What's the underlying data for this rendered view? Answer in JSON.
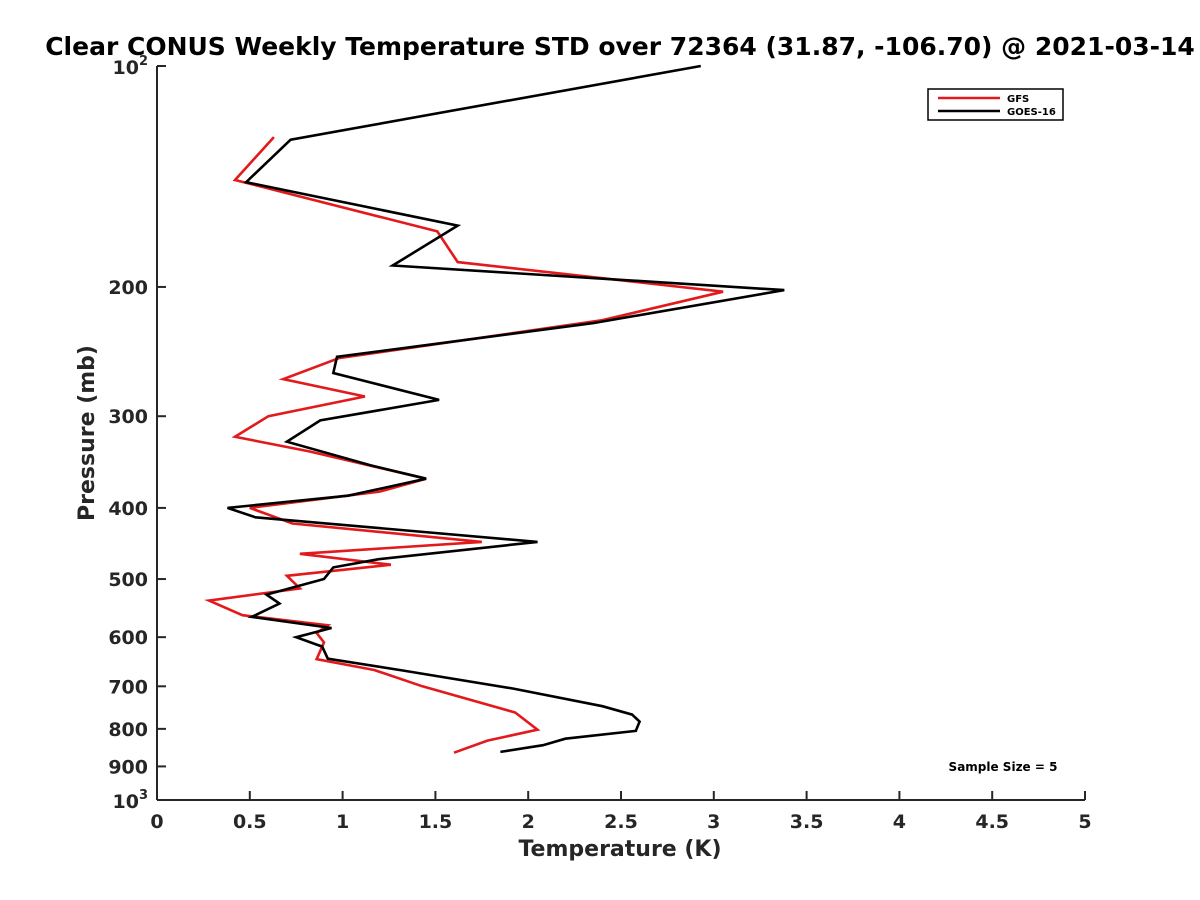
{
  "chart_data": {
    "type": "line",
    "title": "Clear CONUS Weekly Temperature STD over 72364 (31.87, -106.70) @ 2021-03-14",
    "xlabel": "Temperature (K)",
    "ylabel": "Pressure (mb)",
    "xlim": [
      0,
      5
    ],
    "ylim": [
      100,
      1000
    ],
    "yscale": "log",
    "y_reversed": true,
    "grid": false,
    "legend_position": "top-right",
    "x_ticks": [
      "0",
      "0.5",
      "1",
      "1.5",
      "2",
      "2.5",
      "3",
      "3.5",
      "4",
      "4.5",
      "5"
    ],
    "y_ticks": [
      {
        "value": 100,
        "base": "10",
        "exp": "2"
      },
      {
        "value": 200,
        "label": "200"
      },
      {
        "value": 300,
        "label": "300"
      },
      {
        "value": 400,
        "label": "400"
      },
      {
        "value": 500,
        "label": "500"
      },
      {
        "value": 600,
        "label": "600"
      },
      {
        "value": 700,
        "label": "700"
      },
      {
        "value": 800,
        "label": "800"
      },
      {
        "value": 900,
        "label": "900"
      },
      {
        "value": 1000,
        "base": "10",
        "exp": "3"
      }
    ],
    "annotation": "Sample Size = 5",
    "series": [
      {
        "name": "GFS",
        "color": "#e31a1c",
        "points": [
          [
            0.63,
            125
          ],
          [
            0.42,
            143
          ],
          [
            1.51,
            168
          ],
          [
            1.62,
            185
          ],
          [
            3.05,
            203
          ],
          [
            2.4,
            222
          ],
          [
            0.98,
            250
          ],
          [
            0.68,
            267
          ],
          [
            1.12,
            282
          ],
          [
            0.6,
            300
          ],
          [
            0.42,
            320
          ],
          [
            0.82,
            335
          ],
          [
            1.45,
            365
          ],
          [
            1.2,
            380
          ],
          [
            0.5,
            400
          ],
          [
            0.73,
            420
          ],
          [
            1.75,
            445
          ],
          [
            0.77,
            462
          ],
          [
            1.26,
            478
          ],
          [
            0.7,
            495
          ],
          [
            0.77,
            515
          ],
          [
            0.28,
            535
          ],
          [
            0.46,
            560
          ],
          [
            0.92,
            578
          ],
          [
            0.86,
            592
          ],
          [
            0.9,
            610
          ],
          [
            0.86,
            643
          ],
          [
            1.17,
            665
          ],
          [
            1.43,
            700
          ],
          [
            1.93,
            760
          ],
          [
            2.05,
            802
          ],
          [
            1.78,
            830
          ],
          [
            1.6,
            862
          ]
        ]
      },
      {
        "name": "GOES-16",
        "color": "#000000",
        "points": [
          [
            2.93,
            100
          ],
          [
            0.72,
            126
          ],
          [
            0.48,
            144
          ],
          [
            1.62,
            165
          ],
          [
            1.27,
            187
          ],
          [
            3.38,
            202
          ],
          [
            2.35,
            224
          ],
          [
            0.97,
            249
          ],
          [
            0.95,
            262
          ],
          [
            1.52,
            285
          ],
          [
            0.88,
            304
          ],
          [
            0.7,
            325
          ],
          [
            1.15,
            350
          ],
          [
            1.45,
            365
          ],
          [
            1.03,
            385
          ],
          [
            0.38,
            400
          ],
          [
            0.53,
            412
          ],
          [
            2.05,
            445
          ],
          [
            1.19,
            470
          ],
          [
            0.95,
            482
          ],
          [
            0.9,
            500
          ],
          [
            0.59,
            525
          ],
          [
            0.66,
            540
          ],
          [
            0.51,
            563
          ],
          [
            0.94,
            583
          ],
          [
            0.75,
            600
          ],
          [
            0.89,
            618
          ],
          [
            0.92,
            642
          ],
          [
            1.32,
            666
          ],
          [
            1.92,
            705
          ],
          [
            2.4,
            745
          ],
          [
            2.56,
            765
          ],
          [
            2.6,
            782
          ],
          [
            2.58,
            805
          ],
          [
            2.2,
            825
          ],
          [
            2.08,
            842
          ],
          [
            1.85,
            860
          ]
        ]
      }
    ]
  }
}
